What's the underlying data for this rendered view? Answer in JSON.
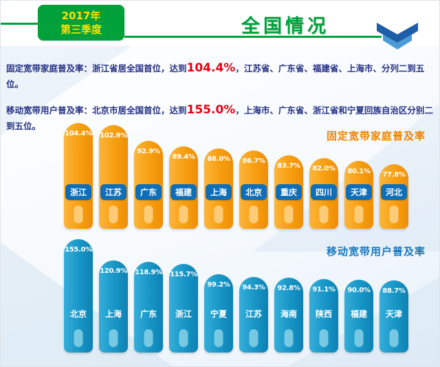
{
  "header": {
    "period_line1": "2017年",
    "period_line2": "第三季度",
    "title": "全国情况",
    "chevron_icon": "double-chevron-down"
  },
  "summary": {
    "p1_prefix": "固定宽带家庭普及率：浙江省居全国首位，达到",
    "p1_value": "104.4%",
    "p1_suffix": "，江苏省、广东省、福建省、上海市、分列二到五位。",
    "p2_prefix": "移动宽带用户普及率：北京市居全国首位，达到",
    "p2_value": "155.0%",
    "p2_suffix": "，上海市、广东省、浙江省和宁夏回族自治区分别二到五位。"
  },
  "colors": {
    "green": "#00a13b",
    "period_text_yellow": "#ffe100",
    "orange_bar": "#f79e10",
    "blue_bar": "#1795c6",
    "badge_blue": "#0e6eb8",
    "red_highlight": "#e60012",
    "fixed_title_orange": "#f08300",
    "mobile_title_blue": "#1778be"
  },
  "chart_data": [
    {
      "type": "bar",
      "orientation": "vertical",
      "title": "固定宽带家庭普及率",
      "unit": "%",
      "categories": [
        "浙江",
        "江苏",
        "广东",
        "福建",
        "上海",
        "北京",
        "重庆",
        "四川",
        "天津",
        "河北"
      ],
      "values": [
        104.4,
        102.9,
        92.9,
        89.4,
        88.0,
        86.7,
        83.7,
        82.0,
        80.1,
        77.8
      ],
      "value_labels": "inside-top",
      "legend": "none",
      "grid": false
    },
    {
      "type": "bar",
      "orientation": "vertical",
      "title": "移动宽带用户普及率",
      "unit": "%",
      "categories": [
        "北京",
        "上海",
        "广东",
        "浙江",
        "宁夏",
        "江苏",
        "海南",
        "陕西",
        "福建",
        "天津"
      ],
      "values": [
        155.0,
        120.9,
        118.9,
        115.7,
        99.2,
        94.3,
        92.8,
        91.1,
        90.0,
        88.7
      ],
      "value_labels": "inside-top",
      "legend": "none",
      "grid": false
    }
  ]
}
